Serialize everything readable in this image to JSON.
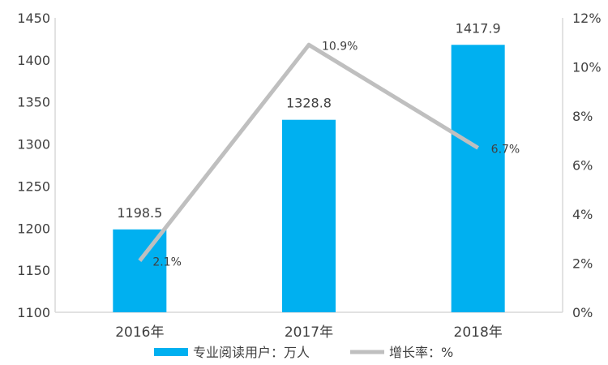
{
  "chart_data": {
    "type": "bar",
    "categories": [
      "2016年",
      "2017年",
      "2018年"
    ],
    "series": [
      {
        "name": "专业阅读用户：万人",
        "type": "bar",
        "axis": "left",
        "color": "#00B0F0",
        "values": [
          1198.5,
          1328.8,
          1417.9
        ],
        "labels": [
          "1198.5",
          "1328.8",
          "1417.9"
        ]
      },
      {
        "name": "增长率：%",
        "type": "line",
        "axis": "right",
        "color": "#BFBFBF",
        "values": [
          2.1,
          10.9,
          6.7
        ],
        "labels": [
          "2.1%",
          "10.9%",
          "6.7%"
        ]
      }
    ],
    "y_left": {
      "ylim": [
        1100,
        1450
      ],
      "ticks": [
        "1100",
        "1150",
        "1200",
        "1250",
        "1300",
        "1350",
        "1400",
        "1450"
      ]
    },
    "y_right": {
      "ylim": [
        0,
        12
      ],
      "ticks": [
        "0%",
        "2%",
        "4%",
        "6%",
        "8%",
        "10%",
        "12%"
      ]
    },
    "grid": false,
    "legend_position": "bottom"
  }
}
